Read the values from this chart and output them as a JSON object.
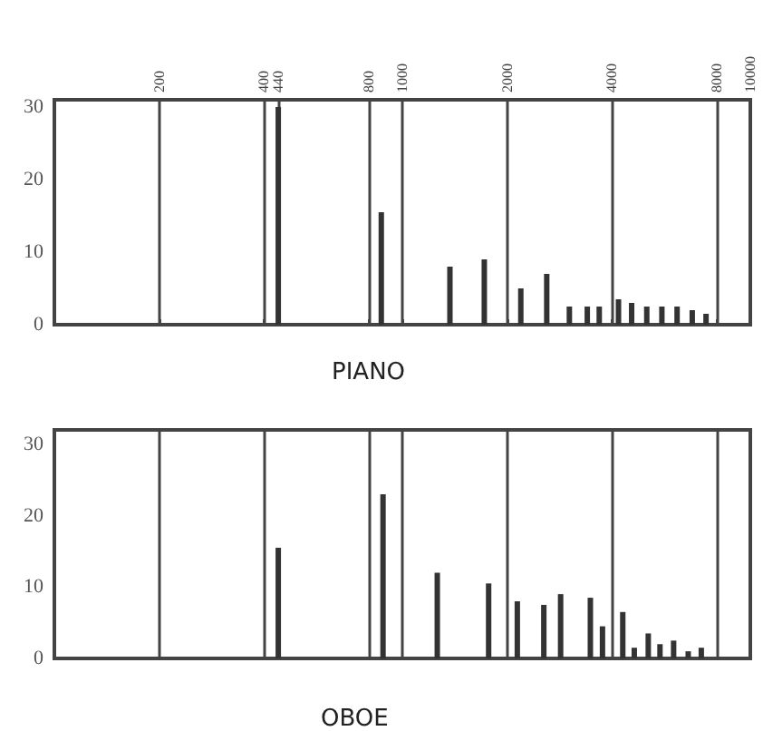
{
  "chart_data": [
    {
      "type": "bar",
      "title": "PIANO",
      "x": [
        440,
        870,
        1370,
        1720,
        2190,
        2600,
        3020,
        3400,
        3680,
        4180,
        4560,
        5040,
        5570,
        6160,
        6810,
        7460
      ],
      "values": [
        30,
        15.5,
        8,
        9,
        5,
        7,
        2.5,
        2.5,
        2.5,
        3.5,
        3,
        2.5,
        2.5,
        2.5,
        2,
        1.5
      ],
      "color": "#333333",
      "xlim": [
        100,
        10000
      ],
      "xticks": [
        200,
        400,
        440,
        800,
        1000,
        2000,
        4000,
        8000,
        10000
      ],
      "ylim": [
        0,
        31
      ],
      "yticks": [
        0,
        10,
        20,
        30
      ],
      "log": "x",
      "grid": "x"
    },
    {
      "type": "bar",
      "title": "OBOE",
      "x": [
        440,
        880,
        1260,
        1770,
        2140,
        2550,
        2850,
        3470,
        3760,
        4300,
        4640,
        5090,
        5500,
        6020,
        6630,
        7230
      ],
      "values": [
        15.5,
        23,
        12,
        10.5,
        8,
        7.5,
        9,
        8.5,
        4.5,
        6.5,
        1.5,
        3.5,
        2,
        2.5,
        1,
        1.5
      ],
      "color": "#333333",
      "xlim": [
        100,
        10000
      ],
      "xticks": [
        200,
        400,
        800,
        1000,
        2000,
        4000,
        8000,
        10000
      ],
      "ylim": [
        0,
        32
      ],
      "yticks": [
        0,
        10,
        20,
        30
      ],
      "log": "x",
      "grid": "x",
      "tick_labels": "y"
    }
  ]
}
